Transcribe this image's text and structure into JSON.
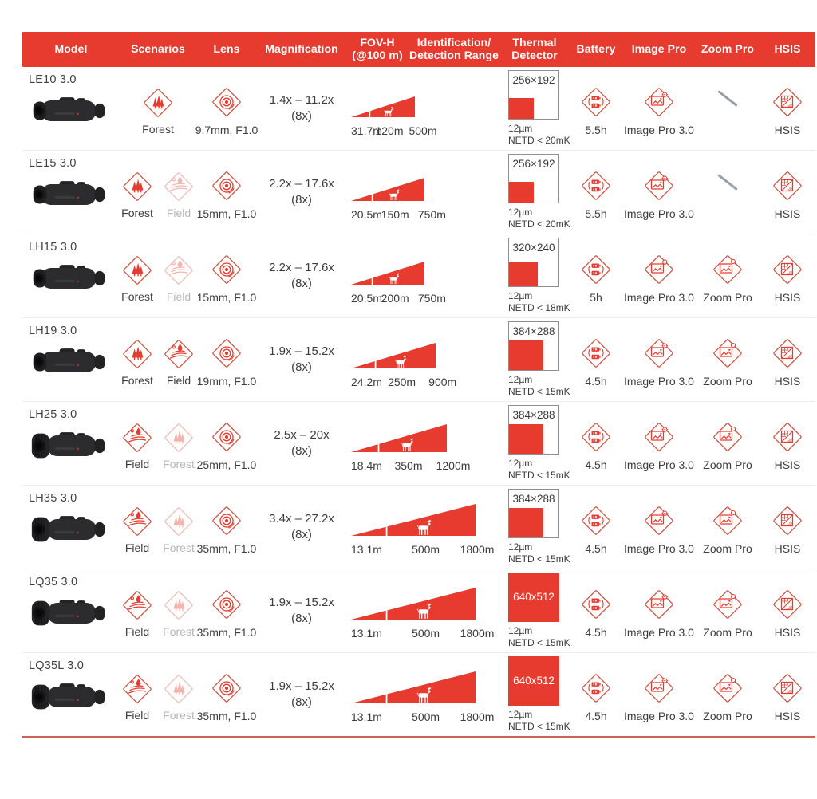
{
  "colors": {
    "header_bg": "#e63b2e",
    "accent_red": "#e63b2e",
    "icon_stroke": "#cc584a",
    "faded_text": "#b7b7b7",
    "text": "#3d3d3f",
    "divider": "#ededed",
    "bottom_line": "#c96453",
    "na_slash": "#96a0a8"
  },
  "table": {
    "headers": [
      {
        "id": "model",
        "label": "Model"
      },
      {
        "id": "scenarios",
        "label": "Scenarios"
      },
      {
        "id": "lens",
        "label": "Lens"
      },
      {
        "id": "magnification",
        "label": "Magnification"
      },
      {
        "id": "fov",
        "label": "FOV-H\n(@100 m)"
      },
      {
        "id": "range",
        "label": "Identification/\nDetection Range"
      },
      {
        "id": "detector",
        "label": "Thermal\nDetector"
      },
      {
        "id": "battery",
        "label": "Battery"
      },
      {
        "id": "image_pro",
        "label": "Image Pro"
      },
      {
        "id": "zoom_pro",
        "label": "Zoom Pro"
      },
      {
        "id": "hsis",
        "label": "HSIS"
      }
    ],
    "rows": [
      {
        "model": "LE10 3.0",
        "scenarios": [
          {
            "name": "Forest",
            "type": "forest",
            "active": true
          }
        ],
        "lens": "9.7mm, F1.0",
        "mag": "1.4x – 11.2x",
        "mag_note": "(8x)",
        "fov": "31.7m",
        "ident": "120m",
        "det": "500m",
        "det_value": 500,
        "detector": {
          "res": "256×192",
          "pixel": "12µm",
          "netd": "NETD < 20mK",
          "full": false
        },
        "battery": "5.5h",
        "image_pro": "Image Pro 3.0",
        "zoom_pro": null,
        "hsis": "HSIS"
      },
      {
        "model": "LE15 3.0",
        "scenarios": [
          {
            "name": "Forest",
            "type": "forest",
            "active": true
          },
          {
            "name": "Field",
            "type": "field",
            "active": false
          }
        ],
        "lens": "15mm, F1.0",
        "mag": "2.2x – 17.6x",
        "mag_note": "(8x)",
        "fov": "20.5m",
        "ident": "150m",
        "det": "750m",
        "det_value": 750,
        "detector": {
          "res": "256×192",
          "pixel": "12µm",
          "netd": "NETD < 20mK",
          "full": false
        },
        "battery": "5.5h",
        "image_pro": "Image Pro 3.0",
        "zoom_pro": null,
        "hsis": "HSIS"
      },
      {
        "model": "LH15 3.0",
        "scenarios": [
          {
            "name": "Forest",
            "type": "forest",
            "active": true
          },
          {
            "name": "Field",
            "type": "field",
            "active": false
          }
        ],
        "lens": "15mm, F1.0",
        "mag": "2.2x – 17.6x",
        "mag_note": "(8x)",
        "fov": "20.5m",
        "ident": "200m",
        "det": "750m",
        "det_value": 750,
        "detector": {
          "res": "320×240",
          "pixel": "12µm",
          "netd": "NETD < 18mK",
          "full": false
        },
        "battery": "5h",
        "image_pro": "Image Pro 3.0",
        "zoom_pro": "Zoom Pro",
        "hsis": "HSIS"
      },
      {
        "model": "LH19 3.0",
        "scenarios": [
          {
            "name": "Forest",
            "type": "forest",
            "active": true
          },
          {
            "name": "Field",
            "type": "field",
            "active": true
          }
        ],
        "lens": "19mm, F1.0",
        "mag": "1.9x – 15.2x",
        "mag_note": "(8x)",
        "fov": "24.2m",
        "ident": "250m",
        "det": "900m",
        "det_value": 900,
        "detector": {
          "res": "384×288",
          "pixel": "12µm",
          "netd": "NETD < 15mK",
          "full": false
        },
        "battery": "4.5h",
        "image_pro": "Image Pro 3.0",
        "zoom_pro": "Zoom Pro",
        "hsis": "HSIS"
      },
      {
        "model": "LH25 3.0",
        "scenarios": [
          {
            "name": "Field",
            "type": "field",
            "active": true
          },
          {
            "name": "Forest",
            "type": "forest",
            "active": false
          }
        ],
        "lens": "25mm, F1.0",
        "mag": "2.5x – 20x",
        "mag_note": "(8x)",
        "fov": "18.4m",
        "ident": "350m",
        "det": "1200m",
        "det_value": 1200,
        "detector": {
          "res": "384×288",
          "pixel": "12µm",
          "netd": "NETD < 15mK",
          "full": false
        },
        "battery": "4.5h",
        "image_pro": "Image Pro 3.0",
        "zoom_pro": "Zoom Pro",
        "hsis": "HSIS"
      },
      {
        "model": "LH35 3.0",
        "scenarios": [
          {
            "name": "Field",
            "type": "field",
            "active": true
          },
          {
            "name": "Forest",
            "type": "forest",
            "active": false
          }
        ],
        "lens": "35mm, F1.0",
        "mag": "3.4x – 27.2x",
        "mag_note": "(8x)",
        "fov": "13.1m",
        "ident": "500m",
        "det": "1800m",
        "det_value": 1800,
        "detector": {
          "res": "384×288",
          "pixel": "12µm",
          "netd": "NETD < 15mK",
          "full": false
        },
        "battery": "4.5h",
        "image_pro": "Image Pro 3.0",
        "zoom_pro": "Zoom Pro",
        "hsis": "HSIS"
      },
      {
        "model": "LQ35 3.0",
        "scenarios": [
          {
            "name": "Field",
            "type": "field",
            "active": true
          },
          {
            "name": "Forest",
            "type": "forest",
            "active": false
          }
        ],
        "lens": "35mm, F1.0",
        "mag": "1.9x – 15.2x",
        "mag_note": "(8x)",
        "fov": "13.1m",
        "ident": "500m",
        "det": "1800m",
        "det_value": 1800,
        "detector": {
          "res": "640x512",
          "pixel": "12µm",
          "netd": "NETD < 15mK",
          "full": true
        },
        "battery": "4.5h",
        "image_pro": "Image Pro 3.0",
        "zoom_pro": "Zoom Pro",
        "hsis": "HSIS"
      },
      {
        "model": "LQ35L 3.0",
        "scenarios": [
          {
            "name": "Field",
            "type": "field",
            "active": true
          },
          {
            "name": "Forest",
            "type": "forest",
            "active": false
          }
        ],
        "lens": "35mm, F1.0",
        "mag": "1.9x – 15.2x",
        "mag_note": "(8x)",
        "fov": "13.1m",
        "ident": "500m",
        "det": "1800m",
        "det_value": 1800,
        "detector": {
          "res": "640x512",
          "pixel": "12µm",
          "netd": "NETD < 15mK",
          "full": true
        },
        "battery": "4.5h",
        "image_pro": "Image Pro 3.0",
        "zoom_pro": "Zoom Pro",
        "hsis": "HSIS"
      }
    ]
  }
}
